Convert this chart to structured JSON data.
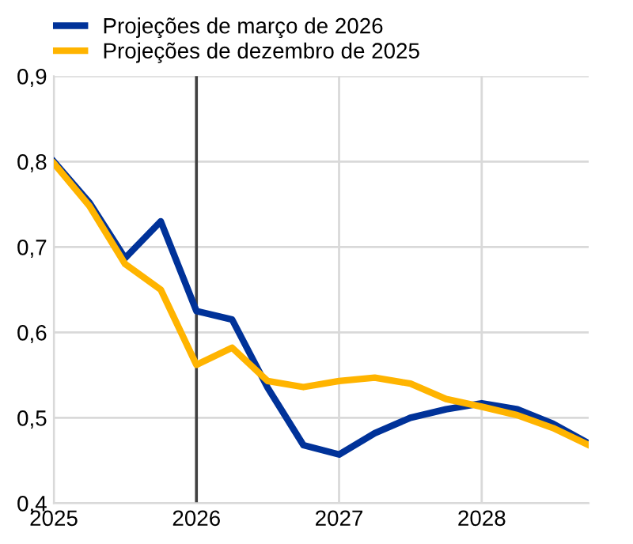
{
  "chart_data": {
    "type": "line",
    "x": [
      2025,
      2025.25,
      2025.5,
      2025.75,
      2026,
      2026.25,
      2026.5,
      2026.75,
      2027,
      2027.25,
      2027.5,
      2027.75,
      2028,
      2028.25,
      2028.5,
      2028.75
    ],
    "series": [
      {
        "name": "Projeções de março de 2026",
        "color": "#003299",
        "values": [
          0.8,
          0.752,
          0.687,
          0.73,
          0.625,
          0.615,
          0.535,
          0.468,
          0.457,
          0.482,
          0.5,
          0.51,
          0.517,
          0.51,
          0.493,
          0.47
        ]
      },
      {
        "name": "Projeções de dezembro de 2025",
        "color": "#ffb400",
        "values": [
          0.798,
          0.748,
          0.68,
          0.65,
          0.562,
          0.582,
          0.543,
          0.536,
          0.543,
          0.547,
          0.54,
          0.522,
          0.513,
          0.503,
          0.488,
          0.468
        ]
      }
    ],
    "xlim": [
      2025,
      2028.75
    ],
    "xticks": [
      2025,
      2026,
      2027,
      2028
    ],
    "ylim": [
      0.4,
      0.9
    ],
    "yticks": [
      {
        "value": 0.4,
        "label": "0,4"
      },
      {
        "value": 0.5,
        "label": "0,5"
      },
      {
        "value": 0.6,
        "label": "0,6"
      },
      {
        "value": 0.7,
        "label": "0,7"
      },
      {
        "value": 0.8,
        "label": "0,8"
      },
      {
        "value": 0.9,
        "label": "0,9"
      }
    ],
    "ref_lines": [
      {
        "axis": "x",
        "value": 2026,
        "color": "#404040"
      }
    ],
    "grid": true,
    "legend": "top left",
    "marker": "none",
    "line_style": "solid"
  }
}
